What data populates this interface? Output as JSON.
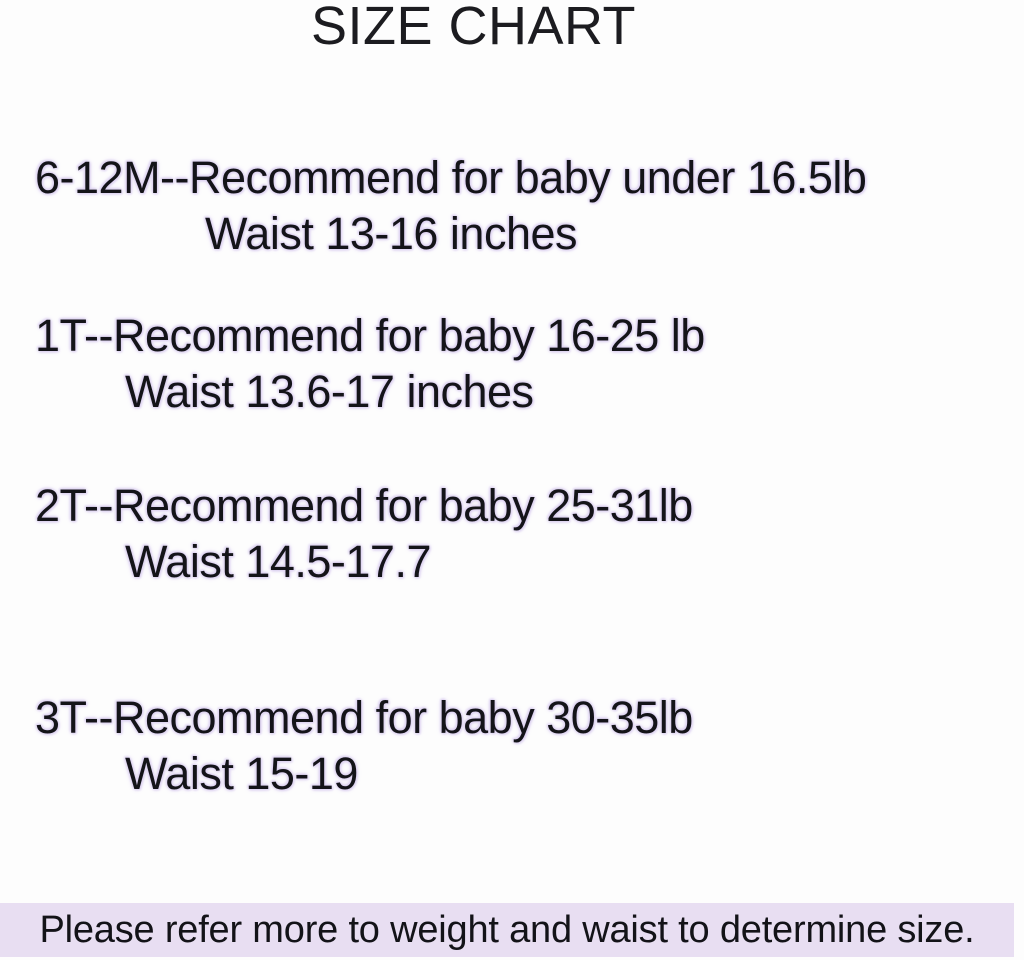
{
  "page": {
    "background_color": "#fdfdfd",
    "text_color": "#141419",
    "halo_color": "#dcd0f0",
    "footer_bar_color": "#e8def2"
  },
  "title": "SIZE CHART",
  "entries": [
    {
      "size_label": "6-12M",
      "line1": "6-12M--Recommend for baby under 16.5lb",
      "line2": "Waist 13-16 inches"
    },
    {
      "size_label": "1T",
      "line1": "1T--Recommend for baby 16-25 lb",
      "line2": "Waist 13.6-17 inches"
    },
    {
      "size_label": "2T",
      "line1": "2T--Recommend for baby 25-31lb",
      "line2": "Waist 14.5-17.7"
    },
    {
      "size_label": "3T",
      "line1": "3T--Recommend for baby 30-35lb",
      "line2": "Waist 15-19"
    }
  ],
  "footer": {
    "note": "Please refer more to weight and waist to determine size."
  }
}
